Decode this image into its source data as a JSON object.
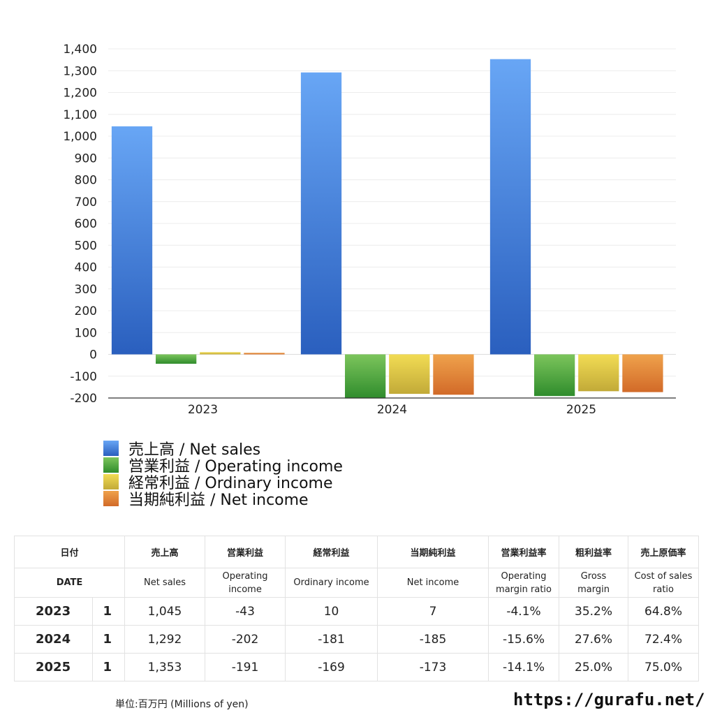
{
  "chart_data": {
    "type": "bar",
    "categories": [
      "2023",
      "2024",
      "2025"
    ],
    "ylim": [
      -200,
      1400
    ],
    "yticks": [
      1400,
      1300,
      1200,
      1100,
      1000,
      900,
      800,
      700,
      600,
      500,
      400,
      300,
      200,
      100,
      0,
      -100,
      -200
    ],
    "ytick_labels": [
      "1,400",
      "1,300",
      "1,200",
      "1,100",
      "1,000",
      "900",
      "800",
      "700",
      "600",
      "500",
      "400",
      "300",
      "200",
      "100",
      "0",
      "-100",
      "-200"
    ],
    "grid": true,
    "legend_position": "bottom-left",
    "series": [
      {
        "name": "売上高 / Net sales",
        "values": [
          1045,
          1292,
          1353
        ],
        "color_top": "#68a6f5",
        "color_bottom": "#2a5fbe"
      },
      {
        "name": "営業利益 / Operating income",
        "values": [
          -43,
          -202,
          -191
        ],
        "color_top": "#7cc55c",
        "color_bottom": "#2f8c2c"
      },
      {
        "name": "経常利益 / Ordinary income",
        "values": [
          10,
          -181,
          -169
        ],
        "color_top": "#f2dc54",
        "color_bottom": "#c2aa38"
      },
      {
        "name": "当期純利益 / Net income",
        "values": [
          7,
          -185,
          -173
        ],
        "color_top": "#efa24c",
        "color_bottom": "#d26a28"
      }
    ]
  },
  "table": {
    "header_jp": [
      "日付",
      "",
      "売上高",
      "営業利益",
      "経常利益",
      "当期純利益",
      "営業利益率",
      "粗利益率",
      "売上原価率"
    ],
    "header_en": {
      "date": "DATE",
      "net_sales": "Net sales",
      "operating_income_1": "Operating",
      "operating_income_2": "income",
      "ordinary_income": "Ordinary income",
      "net_income": "Net income",
      "op_margin_1": "Operating",
      "op_margin_2": "margin ratio",
      "gross_1": "Gross",
      "gross_2": "margin",
      "cost_1": "Cost of sales",
      "cost_2": "ratio"
    },
    "rows": [
      {
        "year": "2023",
        "count": "1",
        "net_sales": "1,045",
        "operating_income": "-43",
        "ordinary_income": "10",
        "net_income": "7",
        "op_margin": "-4.1%",
        "gross_margin": "35.2%",
        "cost_ratio": "64.8%"
      },
      {
        "year": "2024",
        "count": "1",
        "net_sales": "1,292",
        "operating_income": "-202",
        "ordinary_income": "-181",
        "net_income": "-185",
        "op_margin": "-15.6%",
        "gross_margin": "27.6%",
        "cost_ratio": "72.4%"
      },
      {
        "year": "2025",
        "count": "1",
        "net_sales": "1,353",
        "operating_income": "-191",
        "ordinary_income": "-169",
        "net_income": "-173",
        "op_margin": "-14.1%",
        "gross_margin": "25.0%",
        "cost_ratio": "75.0%"
      }
    ]
  },
  "footer": {
    "unit": "単位:百万円 (Millions of yen)",
    "site": "https://gurafu.net/"
  },
  "colors": {
    "negative": "#d9412c"
  }
}
